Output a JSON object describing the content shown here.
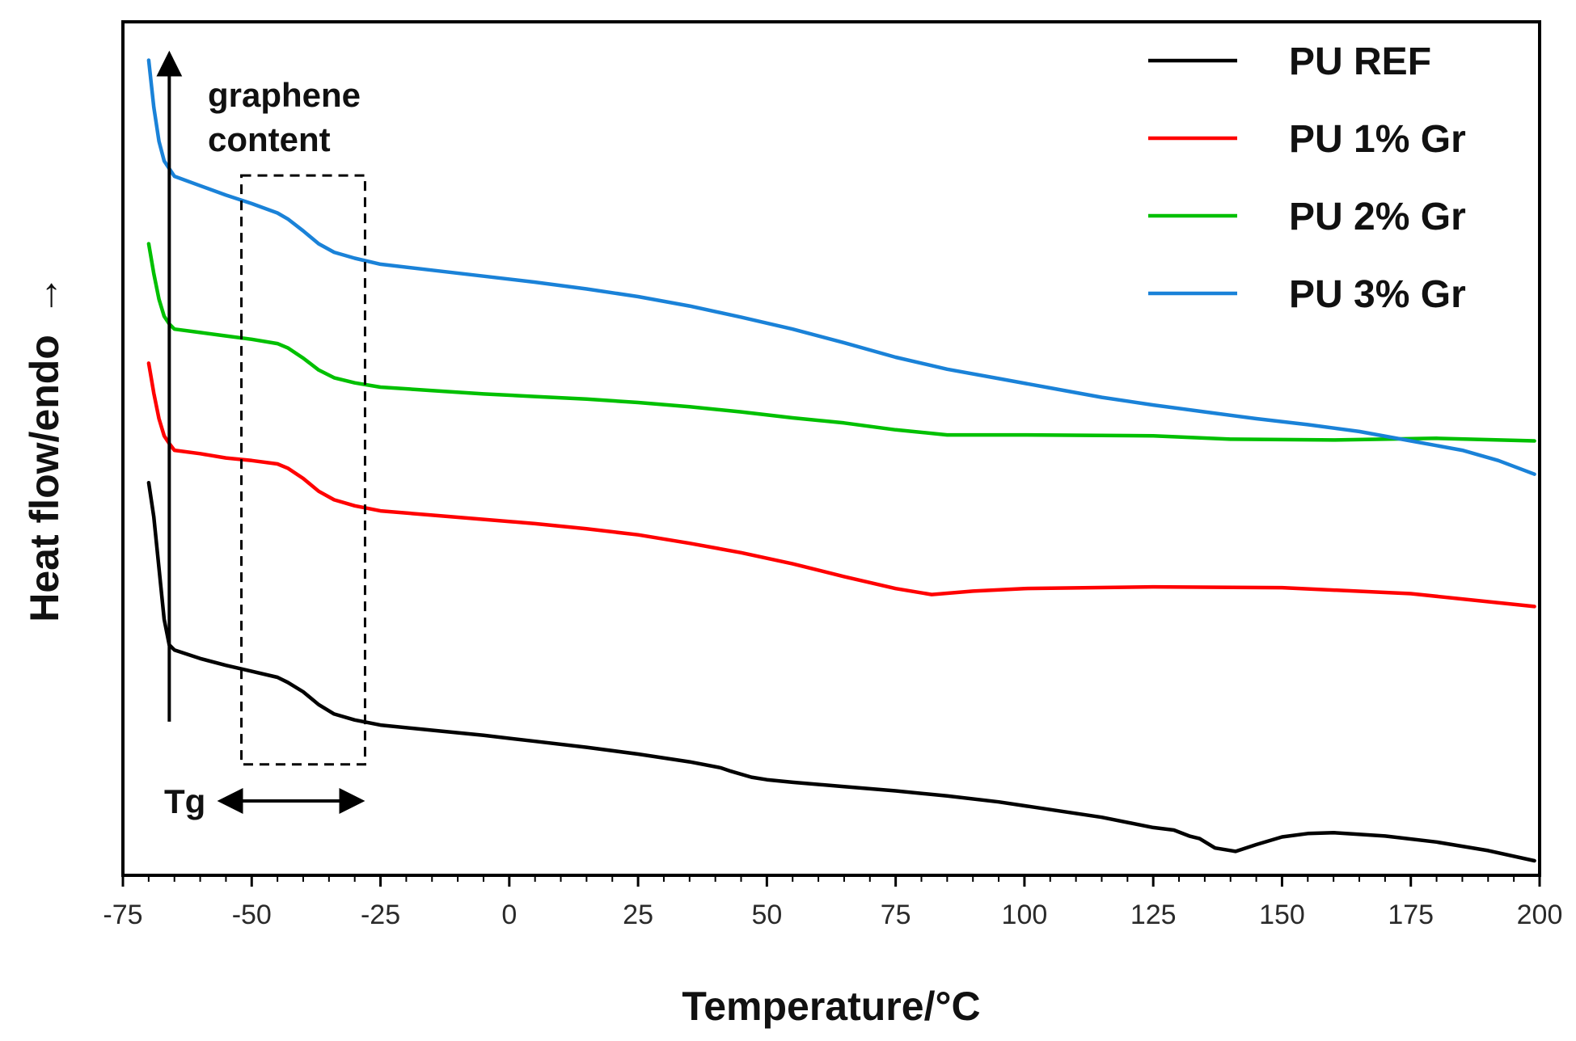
{
  "chart_data": {
    "type": "line",
    "title": "",
    "xlabel": "Temperature/°C",
    "ylabel": "Heat flow/endo",
    "ylabel_arrow": "→",
    "xlim": [
      -75,
      200
    ],
    "ylim": [
      0,
      100
    ],
    "x_ticks": [
      -75,
      -50,
      -25,
      0,
      25,
      50,
      75,
      100,
      125,
      150,
      175,
      200
    ],
    "x_tick_labels": [
      "-75",
      "-50",
      "-25",
      "0",
      "25",
      "50",
      "75",
      "100",
      "125",
      "150",
      "175",
      "200"
    ],
    "y_ticks_shown": false,
    "grid": false,
    "legend_position": "top-right",
    "series": [
      {
        "name": "PU REF",
        "color": "#000000",
        "points": [
          [
            -70,
            46
          ],
          [
            -69,
            42
          ],
          [
            -68,
            36
          ],
          [
            -67,
            30
          ],
          [
            -66,
            27
          ],
          [
            -65,
            26.4
          ],
          [
            -60,
            25.4
          ],
          [
            -55,
            24.6
          ],
          [
            -50,
            23.9
          ],
          [
            -45,
            23.2
          ],
          [
            -43,
            22.6
          ],
          [
            -40,
            21.5
          ],
          [
            -37,
            20
          ],
          [
            -34,
            18.9
          ],
          [
            -30,
            18.2
          ],
          [
            -25,
            17.6
          ],
          [
            -15,
            17
          ],
          [
            -5,
            16.4
          ],
          [
            5,
            15.7
          ],
          [
            15,
            15
          ],
          [
            25,
            14.2
          ],
          [
            35,
            13.3
          ],
          [
            41,
            12.6
          ],
          [
            43,
            12.2
          ],
          [
            47,
            11.5
          ],
          [
            50,
            11.2
          ],
          [
            55,
            10.9
          ],
          [
            65,
            10.4
          ],
          [
            75,
            9.9
          ],
          [
            85,
            9.3
          ],
          [
            95,
            8.6
          ],
          [
            105,
            7.7
          ],
          [
            115,
            6.8
          ],
          [
            125,
            5.6
          ],
          [
            129,
            5.3
          ],
          [
            132,
            4.6
          ],
          [
            134,
            4.3
          ],
          [
            137,
            3.2
          ],
          [
            141,
            2.8
          ],
          [
            145,
            3.6
          ],
          [
            150,
            4.5
          ],
          [
            155,
            4.9
          ],
          [
            160,
            5
          ],
          [
            170,
            4.6
          ],
          [
            180,
            3.9
          ],
          [
            190,
            2.9
          ],
          [
            199,
            1.7
          ]
        ]
      },
      {
        "name": "PU 1% Gr",
        "color": "#ff0000",
        "points": [
          [
            -70,
            60
          ],
          [
            -69,
            56.5
          ],
          [
            -68,
            53.5
          ],
          [
            -67,
            51.5
          ],
          [
            -66,
            50.6
          ],
          [
            -65,
            49.8
          ],
          [
            -60,
            49.4
          ],
          [
            -55,
            48.9
          ],
          [
            -50,
            48.6
          ],
          [
            -45,
            48.2
          ],
          [
            -43,
            47.7
          ],
          [
            -40,
            46.5
          ],
          [
            -37,
            45
          ],
          [
            -34,
            44
          ],
          [
            -30,
            43.3
          ],
          [
            -25,
            42.7
          ],
          [
            -15,
            42.2
          ],
          [
            -5,
            41.7
          ],
          [
            5,
            41.2
          ],
          [
            15,
            40.6
          ],
          [
            25,
            39.9
          ],
          [
            35,
            38.9
          ],
          [
            45,
            37.8
          ],
          [
            55,
            36.5
          ],
          [
            65,
            35
          ],
          [
            75,
            33.6
          ],
          [
            82,
            32.9
          ],
          [
            90,
            33.3
          ],
          [
            100,
            33.6
          ],
          [
            125,
            33.8
          ],
          [
            150,
            33.7
          ],
          [
            175,
            33
          ],
          [
            199,
            31.5
          ]
        ]
      },
      {
        "name": "PU 2% Gr",
        "color": "#00c000",
        "points": [
          [
            -70,
            74
          ],
          [
            -69,
            70.5
          ],
          [
            -68,
            67.5
          ],
          [
            -67,
            65.5
          ],
          [
            -66,
            64.6
          ],
          [
            -65,
            64
          ],
          [
            -60,
            63.6
          ],
          [
            -55,
            63.2
          ],
          [
            -50,
            62.8
          ],
          [
            -45,
            62.3
          ],
          [
            -43,
            61.8
          ],
          [
            -40,
            60.6
          ],
          [
            -37,
            59.2
          ],
          [
            -34,
            58.3
          ],
          [
            -30,
            57.7
          ],
          [
            -25,
            57.2
          ],
          [
            -15,
            56.8
          ],
          [
            -5,
            56.4
          ],
          [
            5,
            56.1
          ],
          [
            15,
            55.8
          ],
          [
            25,
            55.4
          ],
          [
            35,
            54.9
          ],
          [
            45,
            54.3
          ],
          [
            55,
            53.6
          ],
          [
            65,
            53
          ],
          [
            75,
            52.2
          ],
          [
            85,
            51.6
          ],
          [
            100,
            51.6
          ],
          [
            125,
            51.5
          ],
          [
            140,
            51.1
          ],
          [
            160,
            51
          ],
          [
            180,
            51.2
          ],
          [
            199,
            50.9
          ]
        ]
      },
      {
        "name": "PU 3% Gr",
        "color": "#1a82d8",
        "points": [
          [
            -70,
            95.5
          ],
          [
            -69,
            90
          ],
          [
            -68,
            86
          ],
          [
            -67,
            83.7
          ],
          [
            -66,
            82.8
          ],
          [
            -65,
            81.9
          ],
          [
            -60,
            80.8
          ],
          [
            -55,
            79.7
          ],
          [
            -50,
            78.7
          ],
          [
            -45,
            77.6
          ],
          [
            -43,
            76.9
          ],
          [
            -40,
            75.5
          ],
          [
            -37,
            74
          ],
          [
            -34,
            73
          ],
          [
            -30,
            72.3
          ],
          [
            -25,
            71.6
          ],
          [
            -15,
            70.9
          ],
          [
            -5,
            70.2
          ],
          [
            5,
            69.5
          ],
          [
            15,
            68.7
          ],
          [
            25,
            67.8
          ],
          [
            35,
            66.7
          ],
          [
            45,
            65.4
          ],
          [
            55,
            64
          ],
          [
            65,
            62.4
          ],
          [
            75,
            60.7
          ],
          [
            85,
            59.3
          ],
          [
            95,
            58.2
          ],
          [
            105,
            57.1
          ],
          [
            115,
            56
          ],
          [
            125,
            55.1
          ],
          [
            135,
            54.3
          ],
          [
            145,
            53.5
          ],
          [
            155,
            52.8
          ],
          [
            165,
            52
          ],
          [
            175,
            50.9
          ],
          [
            185,
            49.8
          ],
          [
            192,
            48.6
          ],
          [
            199,
            47
          ]
        ]
      }
    ],
    "annotations": {
      "arrow_label": [
        "graphene",
        "content"
      ],
      "tg_label": "Tg",
      "tg_range": [
        -52,
        -28
      ],
      "box_range": [
        -52,
        -28
      ],
      "box_y_range": [
        13,
        82
      ],
      "content_arrow_x": -66,
      "content_arrow_y_range": [
        18,
        97
      ]
    }
  }
}
